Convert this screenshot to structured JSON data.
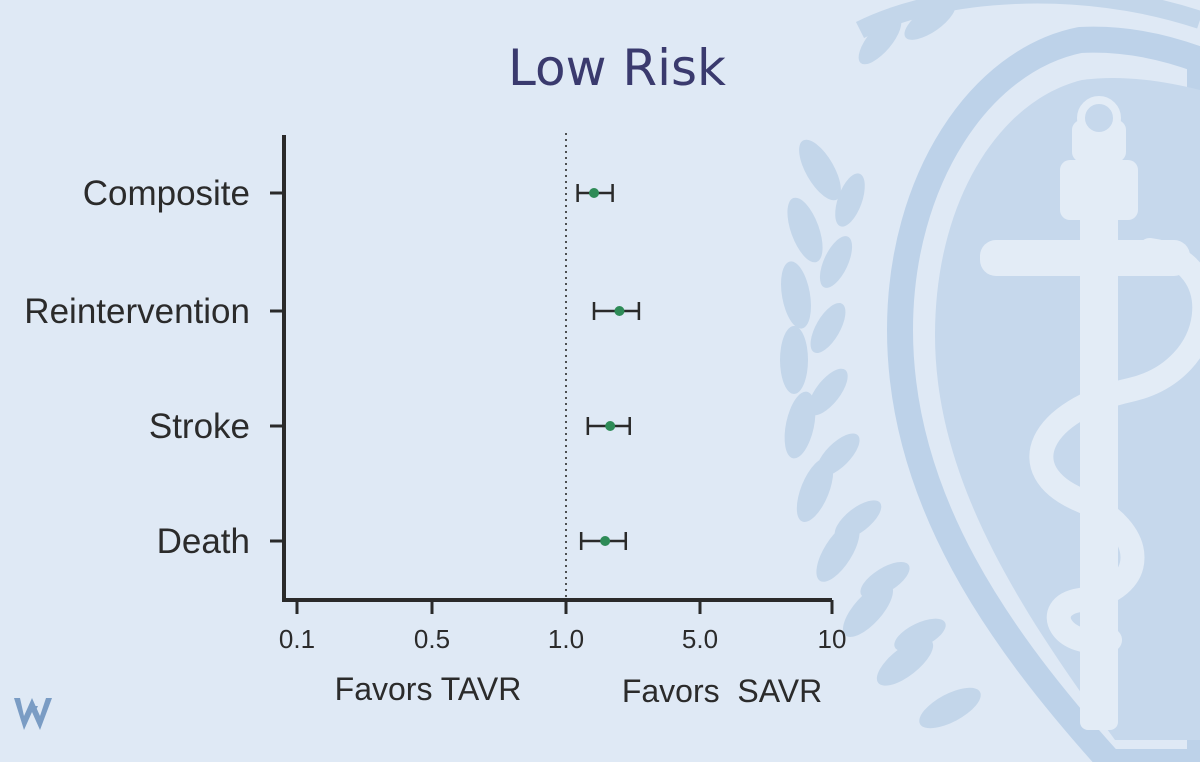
{
  "chart_data": {
    "type": "forest",
    "title": "Low Risk",
    "scale": "log",
    "xlim": [
      0.08,
      10
    ],
    "x_ticks": [
      {
        "value": 0.1,
        "label": "0.1"
      },
      {
        "value": 0.5,
        "label": "0.5"
      },
      {
        "value": 1.0,
        "label": "1.0"
      },
      {
        "value": 5.0,
        "label": "5.0"
      },
      {
        "value": 10,
        "label": "10"
      }
    ],
    "reference_value": 1.0,
    "rows": [
      {
        "label": "Composite",
        "estimate": 1.4,
        "ci_low": 1.15,
        "ci_high": 1.75
      },
      {
        "label": "Reintervention",
        "estimate": 1.9,
        "ci_low": 1.4,
        "ci_high": 2.4
      },
      {
        "label": "Stroke",
        "estimate": 1.7,
        "ci_low": 1.3,
        "ci_high": 2.15
      },
      {
        "label": "Death",
        "estimate": 1.6,
        "ci_low": 1.2,
        "ci_high": 2.05
      }
    ],
    "left_caption": "Favors TAVR",
    "right_caption": "Favors  SAVR",
    "point_color": "#2e8b57"
  },
  "colors": {
    "background": "#dfe9f5",
    "emblem": "#b9cfe6",
    "title": "#3a3a6e",
    "axis": "#2a2a2a",
    "logo": "#7a9cc4"
  }
}
